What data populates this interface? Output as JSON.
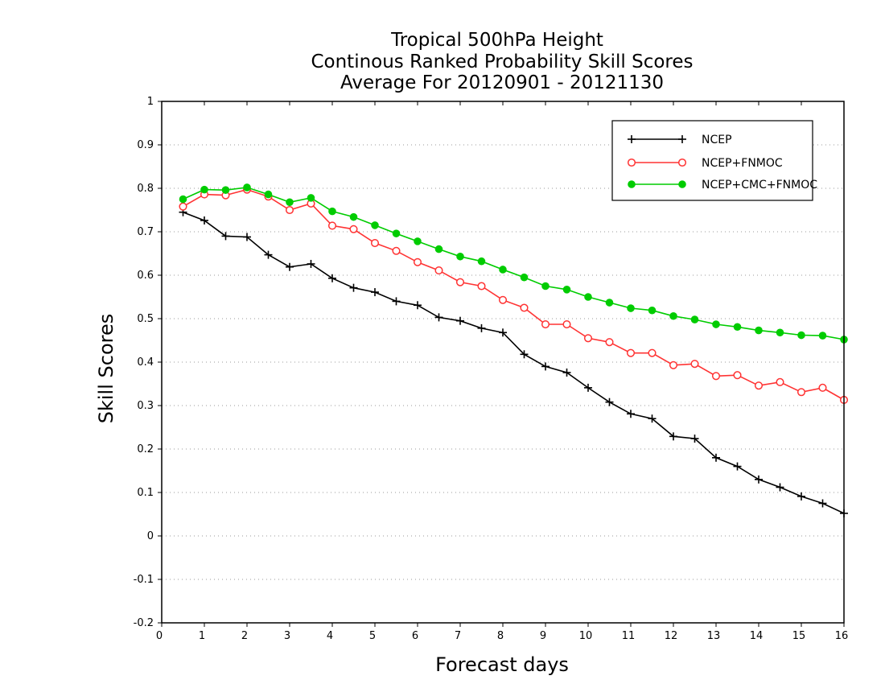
{
  "chart_data": {
    "type": "line",
    "title_lines": [
      "Tropical 500hPa Height",
      "Continous Ranked Probability Skill Scores",
      "Average For 20120901 - 20121130"
    ],
    "xlabel": "Forecast days",
    "ylabel": "Skill Scores",
    "xlim": [
      0,
      16
    ],
    "ylim": [
      -0.2,
      1
    ],
    "x_ticks": [
      "0",
      "1",
      "2",
      "3",
      "4",
      "5",
      "6",
      "7",
      "8",
      "9",
      "10",
      "11",
      "12",
      "13",
      "14",
      "15",
      "16"
    ],
    "y_ticks": [
      "-0.2",
      "-0.1",
      "0",
      "0.1",
      "0.2",
      "0.3",
      "0.4",
      "0.5",
      "0.6",
      "0.7",
      "0.8",
      "0.9",
      "1"
    ],
    "grid": "horizontal dotted",
    "legend_position": "top-right",
    "x": [
      0.5,
      1,
      1.5,
      2,
      2.5,
      3,
      3.5,
      4,
      4.5,
      5,
      5.5,
      6,
      6.5,
      7,
      7.5,
      8,
      8.5,
      9,
      9.5,
      10,
      10.5,
      11,
      11.5,
      12,
      12.5,
      13,
      13.5,
      14,
      14.5,
      15,
      15.5,
      16
    ],
    "series": [
      {
        "name": "NCEP",
        "color": "#000000",
        "marker": "plus",
        "values": [
          0.745,
          0.726,
          0.69,
          0.688,
          0.647,
          0.619,
          0.626,
          0.593,
          0.571,
          0.561,
          0.54,
          0.531,
          0.503,
          0.495,
          0.478,
          0.468,
          0.418,
          0.39,
          0.376,
          0.341,
          0.308,
          0.281,
          0.27,
          0.229,
          0.224,
          0.18,
          0.16,
          0.13,
          0.112,
          0.091,
          0.075,
          0.052
        ]
      },
      {
        "name": "NCEP+FNMOC",
        "color": "#ff3333",
        "marker": "open-circle",
        "values": [
          0.758,
          0.786,
          0.784,
          0.797,
          0.781,
          0.75,
          0.765,
          0.714,
          0.706,
          0.674,
          0.656,
          0.63,
          0.611,
          0.584,
          0.575,
          0.543,
          0.525,
          0.487,
          0.487,
          0.455,
          0.446,
          0.421,
          0.421,
          0.393,
          0.396,
          0.368,
          0.37,
          0.346,
          0.354,
          0.331,
          0.341,
          0.313
        ]
      },
      {
        "name": "NCEP+CMC+FNMOC",
        "color": "#00cc00",
        "marker": "filled-circle",
        "values": [
          0.775,
          0.797,
          0.796,
          0.802,
          0.786,
          0.768,
          0.778,
          0.747,
          0.734,
          0.715,
          0.696,
          0.678,
          0.66,
          0.643,
          0.632,
          0.613,
          0.595,
          0.575,
          0.567,
          0.55,
          0.537,
          0.524,
          0.519,
          0.506,
          0.498,
          0.487,
          0.481,
          0.473,
          0.468,
          0.462,
          0.461,
          0.452
        ]
      }
    ]
  }
}
